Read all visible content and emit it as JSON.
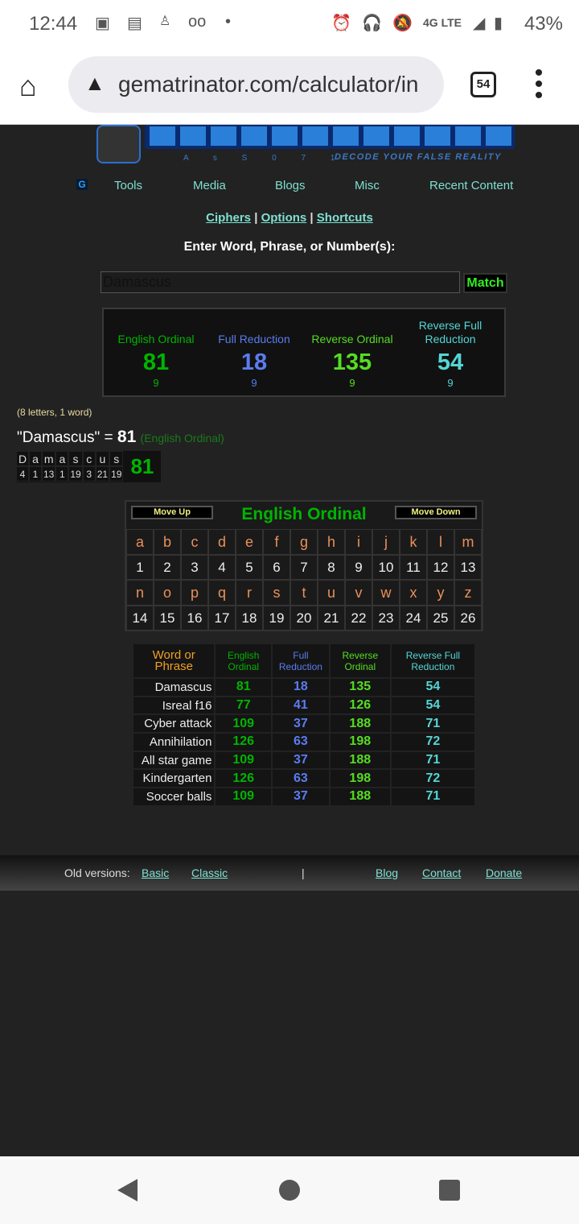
{
  "status_bar": {
    "time": "12:44",
    "battery": "43%",
    "network": "4G LTE"
  },
  "browser": {
    "url": "gematrinator.com/calculator/in",
    "tab_count": "54"
  },
  "logo": {
    "text": "GEMATRINATOR",
    "tagline": "DECODE YOUR FALSE REALITY"
  },
  "nav": {
    "items": [
      "Tools",
      "Media",
      "Blogs",
      "Misc",
      "Recent Content"
    ]
  },
  "links": {
    "ciphers": "Ciphers",
    "options": "Options",
    "shortcuts": "Shortcuts",
    "sep": "|"
  },
  "prompt": "Enter Word, Phrase, or Number(s):",
  "search": {
    "value": "Damascus",
    "button": "Match"
  },
  "colors": {
    "english_ordinal": "#00b400",
    "full_reduction": "#5b7cf0",
    "reverse_ordinal": "#55dd22",
    "reverse_full_reduction": "#55d6d6"
  },
  "summary": [
    {
      "name": "English Ordinal",
      "value": "81",
      "reduced": "9",
      "cls": "eo"
    },
    {
      "name": "Full Reduction",
      "value": "18",
      "reduced": "9",
      "cls": "fr"
    },
    {
      "name": "Reverse Ordinal",
      "value": "135",
      "reduced": "9",
      "cls": "ro"
    },
    {
      "name": "Reverse Full Reduction",
      "value": "54",
      "reduced": "9",
      "cls": "rfr"
    }
  ],
  "counts": "(8 letters, 1 word)",
  "equation": {
    "phrase": "\"Damascus\" =",
    "value": "81",
    "cipher": "(English Ordinal)"
  },
  "breakdown": {
    "letters": [
      "D",
      "a",
      "m",
      "a",
      "s",
      "c",
      "u",
      "s"
    ],
    "values": [
      "4",
      "1",
      "13",
      "1",
      "19",
      "3",
      "21",
      "19"
    ],
    "total": "81"
  },
  "cipher_chart": {
    "title": "English Ordinal",
    "move_up": "Move Up",
    "move_down": "Move Down",
    "letters": [
      "a",
      "b",
      "c",
      "d",
      "e",
      "f",
      "g",
      "h",
      "i",
      "j",
      "k",
      "l",
      "m",
      "n",
      "o",
      "p",
      "q",
      "r",
      "s",
      "t",
      "u",
      "v",
      "w",
      "x",
      "y",
      "z"
    ],
    "values": [
      "1",
      "2",
      "3",
      "4",
      "5",
      "6",
      "7",
      "8",
      "9",
      "10",
      "11",
      "12",
      "13",
      "14",
      "15",
      "16",
      "17",
      "18",
      "19",
      "20",
      "21",
      "22",
      "23",
      "24",
      "25",
      "26"
    ]
  },
  "history": {
    "headers": [
      "Word or Phrase",
      "English Ordinal",
      "Full Reduction",
      "Reverse Ordinal",
      "Reverse Full Reduction"
    ],
    "rows": [
      [
        "Damascus",
        "81",
        "18",
        "135",
        "54"
      ],
      [
        "Isreal f16",
        "77",
        "41",
        "126",
        "54"
      ],
      [
        "Cyber attack",
        "109",
        "37",
        "188",
        "71"
      ],
      [
        "Annihilation",
        "126",
        "63",
        "198",
        "72"
      ],
      [
        "All star game",
        "109",
        "37",
        "188",
        "71"
      ],
      [
        "Kindergarten",
        "126",
        "63",
        "198",
        "72"
      ],
      [
        "Soccer balls",
        "109",
        "37",
        "188",
        "71"
      ]
    ]
  },
  "footer": {
    "old_versions": "Old versions:",
    "basic": "Basic",
    "classic": "Classic",
    "sep": "|",
    "blog": "Blog",
    "contact": "Contact",
    "donate": "Donate"
  }
}
